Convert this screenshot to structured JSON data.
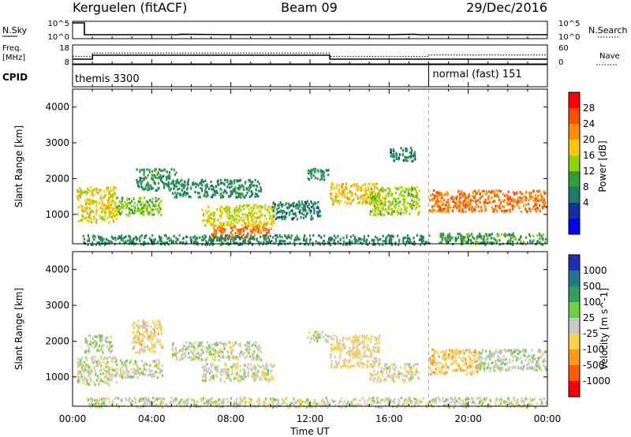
{
  "header": {
    "station": "Kerguelen (fitACF)",
    "beam": "Beam 09",
    "date": "29/Dec/2016"
  },
  "sky_panel": {
    "left_label": "N.Sky",
    "right_label": "N.Search",
    "left_ticks": [
      "10^5",
      "10^0"
    ],
    "right_ticks": [
      "10^5",
      "10^0"
    ]
  },
  "freq_panel": {
    "left_label": "Freq.",
    "left_unit": "[MHz]",
    "right_label": "Nave",
    "left_ticks": [
      "18",
      "8"
    ],
    "right_ticks": [
      "60",
      "0"
    ]
  },
  "cpid_panel": {
    "label": "CPID",
    "modes": [
      {
        "name": "themis 3300",
        "start_hour": 0
      },
      {
        "name": "normal (fast) 151",
        "start_hour": 18
      }
    ]
  },
  "power_panel": {
    "ylabel": "Slant Range [km]",
    "colorbar_label": "Power [dB]",
    "colorbar_ticks": [
      "28",
      "24",
      "20",
      "16",
      "12",
      "8",
      "4"
    ],
    "colorbar_colors": [
      "#ff0000",
      "#ff4d00",
      "#ff8c00",
      "#ffc800",
      "#8fd400",
      "#2e9e3e",
      "#1f7a6e",
      "#1030a0",
      "#0000ff"
    ]
  },
  "velocity_panel": {
    "ylabel": "Slant Range [km]",
    "colorbar_label": "Velocity [m s^-1]",
    "colorbar_ticks": [
      "1000",
      "500",
      "100",
      "25",
      "-25",
      "-100",
      "-500",
      "-1000"
    ],
    "colorbar_colors": [
      "#1b2fb0",
      "#1f7a8a",
      "#2ea05a",
      "#6fd040",
      "#c8c8c8",
      "#ffd24a",
      "#ff9a1a",
      "#ff5a00",
      "#ff0000"
    ]
  },
  "x_axis": {
    "label": "Time UT",
    "tick_labels": [
      "00:00",
      "04:00",
      "08:00",
      "12:00",
      "16:00",
      "20:00",
      "00:00"
    ]
  },
  "chart_data": [
    {
      "type": "line",
      "title": "N.Sky / N.Search",
      "series": [
        {
          "name": "N.Sky",
          "x": [
            0,
            0.6,
            0.6,
            5.3,
            5.5,
            8,
            12,
            14,
            16,
            17.3,
            17.5,
            20,
            24
          ],
          "y": [
            6,
            6,
            1,
            1,
            1.2,
            1,
            1,
            1.1,
            1,
            1.2,
            1,
            1,
            1
          ]
        },
        {
          "name": "N.Search",
          "x": [
            0,
            24
          ],
          "y": [
            0,
            0
          ]
        }
      ]
    },
    {
      "type": "line",
      "title": "Freq. / Nave",
      "series": [
        {
          "name": "Freq. [MHz]",
          "x": [
            0,
            1,
            1,
            13,
            13,
            24
          ],
          "y": [
            10,
            10,
            12.5,
            12.5,
            10,
            10
          ]
        },
        {
          "name": "Nave",
          "x": [
            0,
            1,
            1,
            13,
            13,
            18,
            18,
            24
          ],
          "y": [
            22,
            22,
            35,
            35,
            22,
            22,
            28,
            28
          ]
        }
      ]
    },
    {
      "type": "heatmap",
      "title": "Power [dB]",
      "xlabel": "Time UT",
      "ylabel": "Slant Range [km]",
      "xlim": [
        0,
        24
      ],
      "ylim": [
        180,
        4500
      ],
      "y_ticks": [
        1000,
        2000,
        3000,
        4000
      ],
      "value_range": [
        0,
        30
      ],
      "regions": [
        {
          "t0": 0.2,
          "t1": 2.2,
          "r0": 800,
          "r1": 1800,
          "value": 18
        },
        {
          "t0": 2.2,
          "t1": 4.5,
          "r0": 1000,
          "r1": 1500,
          "value": 14
        },
        {
          "t0": 3.2,
          "t1": 5.2,
          "r0": 1700,
          "r1": 2300,
          "value": 10
        },
        {
          "t0": 5.0,
          "t1": 9.5,
          "r0": 1500,
          "r1": 2000,
          "value": 9
        },
        {
          "t0": 6.5,
          "t1": 10.2,
          "r0": 700,
          "r1": 1300,
          "value": 17
        },
        {
          "t0": 7.0,
          "t1": 10.0,
          "r0": 350,
          "r1": 700,
          "value": 24
        },
        {
          "t0": 10.0,
          "t1": 12.5,
          "r0": 900,
          "r1": 1400,
          "value": 8
        },
        {
          "t0": 11.8,
          "t1": 12.9,
          "r0": 2000,
          "r1": 2300,
          "value": 10
        },
        {
          "t0": 13.0,
          "t1": 15.5,
          "r0": 1300,
          "r1": 1900,
          "value": 19
        },
        {
          "t0": 15.0,
          "t1": 17.5,
          "r0": 1000,
          "r1": 1800,
          "value": 15
        },
        {
          "t0": 16.0,
          "t1": 17.3,
          "r0": 2500,
          "r1": 2900,
          "value": 8
        },
        {
          "t0": 18.0,
          "t1": 23.9,
          "r0": 1100,
          "r1": 1700,
          "value": 24
        },
        {
          "t0": 18.5,
          "t1": 23.9,
          "r0": 180,
          "r1": 500,
          "value": 11
        },
        {
          "t0": 0.5,
          "t1": 18.0,
          "r0": 180,
          "r1": 450,
          "value": 9
        }
      ]
    },
    {
      "type": "heatmap",
      "title": "Velocity [m s^-1]",
      "xlabel": "Time UT",
      "ylabel": "Slant Range [km]",
      "xlim": [
        0,
        24
      ],
      "ylim": [
        180,
        4500
      ],
      "y_ticks": [
        1000,
        2000,
        3000,
        4000
      ],
      "value_range": [
        -1000,
        1000
      ],
      "regions": [
        {
          "t0": 0.2,
          "t1": 2.2,
          "r0": 800,
          "r1": 1600,
          "value": 0
        },
        {
          "t0": 0.6,
          "t1": 2.0,
          "r0": 1700,
          "r1": 2200,
          "value": 60
        },
        {
          "t0": 2.2,
          "t1": 4.5,
          "r0": 1000,
          "r1": 1500,
          "value": 0
        },
        {
          "t0": 3.0,
          "t1": 4.5,
          "r0": 1700,
          "r1": 2600,
          "value": -200
        },
        {
          "t0": 5.0,
          "t1": 9.5,
          "r0": 1500,
          "r1": 2000,
          "value": 0
        },
        {
          "t0": 6.5,
          "t1": 10.2,
          "r0": 900,
          "r1": 1400,
          "value": 0
        },
        {
          "t0": 11.8,
          "t1": 12.9,
          "r0": 2000,
          "r1": 2300,
          "value": 0
        },
        {
          "t0": 13.0,
          "t1": 15.5,
          "r0": 1300,
          "r1": 2200,
          "value": -150
        },
        {
          "t0": 15.0,
          "t1": 17.5,
          "r0": 900,
          "r1": 1400,
          "value": -60
        },
        {
          "t0": 18.0,
          "t1": 20.5,
          "r0": 1100,
          "r1": 1800,
          "value": -300
        },
        {
          "t0": 20.5,
          "t1": 23.9,
          "r0": 1200,
          "r1": 1800,
          "value": 80
        },
        {
          "t0": 0.5,
          "t1": 23.9,
          "r0": 180,
          "r1": 450,
          "value": 0
        }
      ]
    }
  ]
}
